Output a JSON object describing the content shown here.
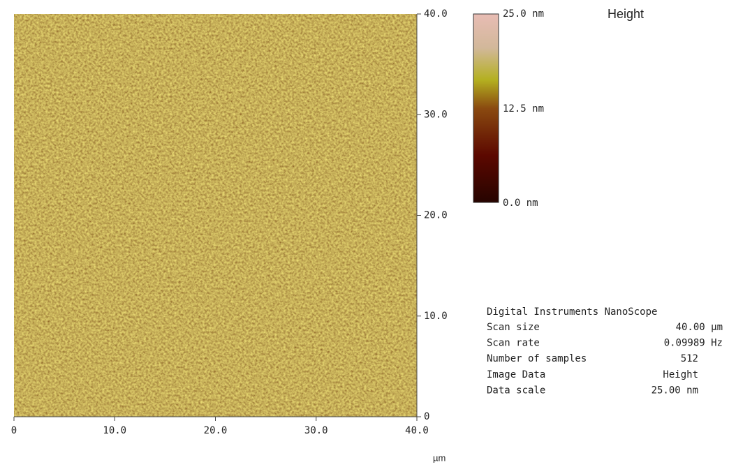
{
  "image": {
    "x_ticks": [
      "0",
      "10.0",
      "20.0",
      "30.0",
      "40.0"
    ],
    "y_ticks": [
      "0",
      "10.0",
      "20.0",
      "30.0",
      "40.0"
    ],
    "x_unit": "µm"
  },
  "colorbar": {
    "title": "Height",
    "labels": [
      "25.0 nm",
      "12.5 nm",
      "0.0 nm"
    ]
  },
  "info": {
    "header": "Digital Instruments NanoScope",
    "rows": [
      [
        "Scan size",
        "40.00 µm"
      ],
      [
        "Scan rate",
        "0.09989 Hz"
      ],
      [
        "Number of samples",
        "512"
      ],
      [
        "Image Data",
        "Height"
      ],
      [
        "Data scale",
        "25.00 nm"
      ]
    ]
  }
}
